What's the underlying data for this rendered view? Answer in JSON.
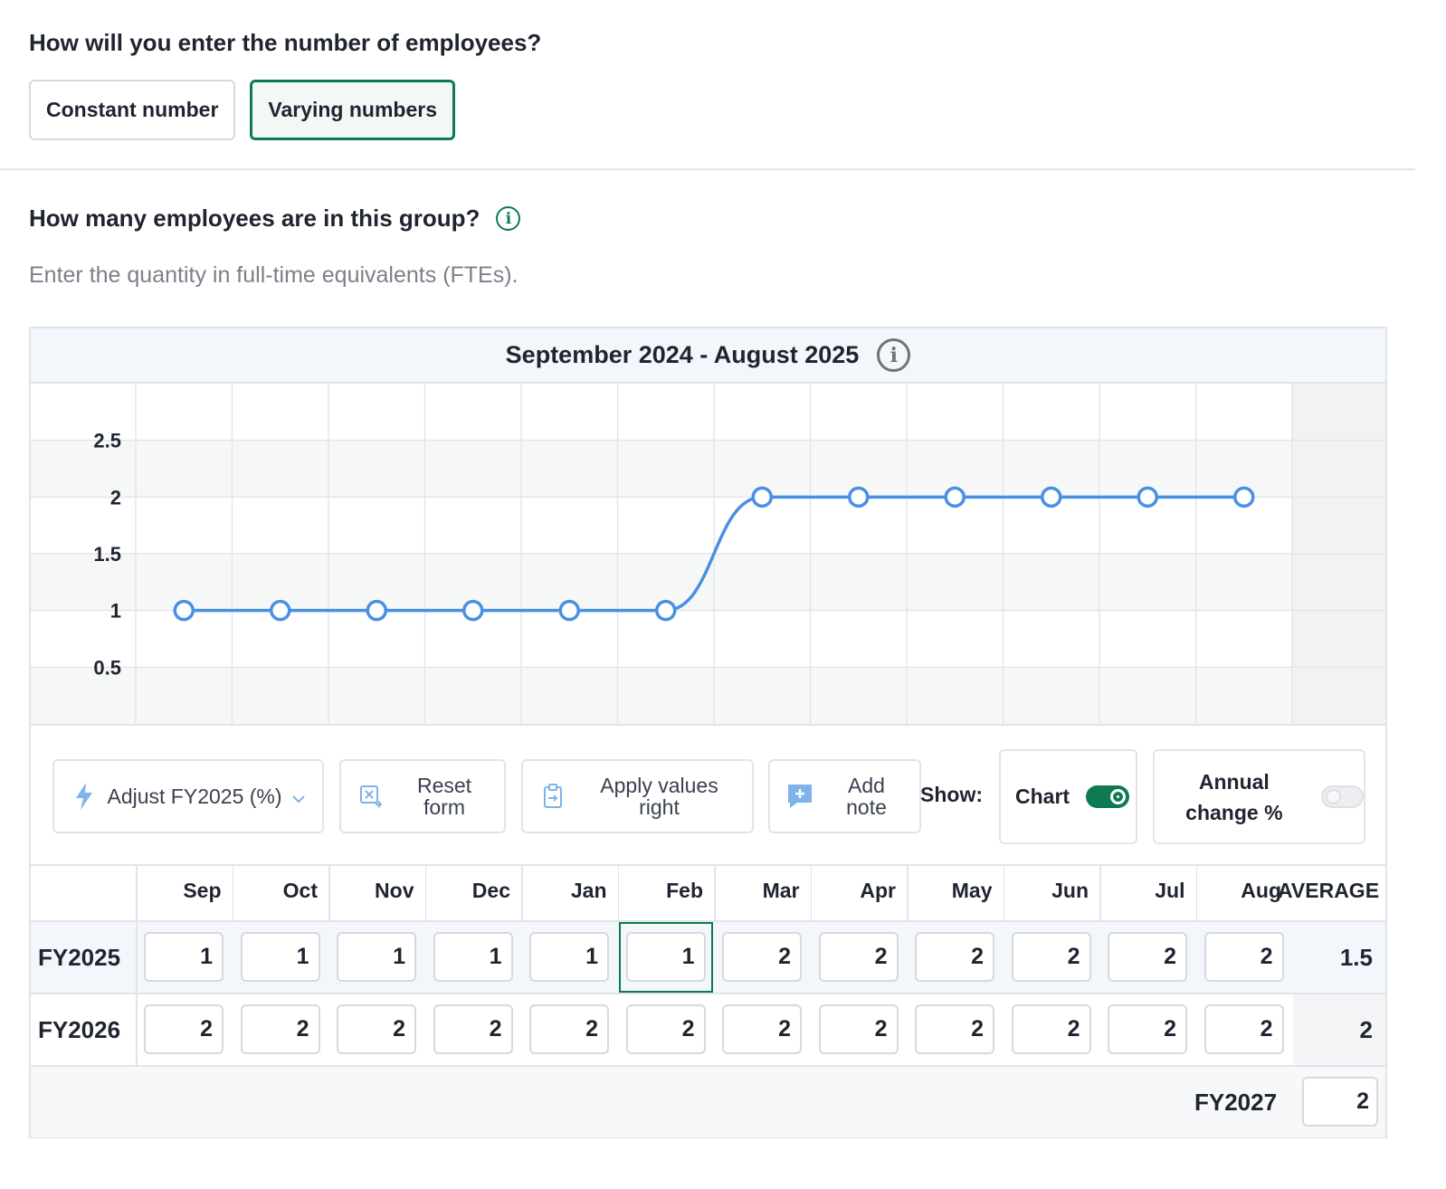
{
  "entry_question": "How will you enter the number of employees?",
  "entry_options": [
    {
      "label": "Constant number",
      "selected": false
    },
    {
      "label": "Varying numbers",
      "selected": true
    }
  ],
  "count_question": "How many employees are in this group?",
  "count_hint": "Enter the quantity in full-time equivalents (FTEs).",
  "icons": {
    "info": "info-icon",
    "adjust": "lightning-icon",
    "reset": "reset-icon",
    "apply": "clipboard-icon",
    "note": "add-note-icon",
    "dropdown": "chevron-down-icon"
  },
  "colors": {
    "accent": "#0e7a52",
    "line": "#4a90e2"
  },
  "chart_data": {
    "type": "line",
    "title": "September 2024 - August 2025",
    "categories": [
      "Sep",
      "Oct",
      "Nov",
      "Dec",
      "Jan",
      "Feb",
      "Mar",
      "Apr",
      "May",
      "Jun",
      "Jul",
      "Aug"
    ],
    "series": [
      {
        "values": [
          1,
          1,
          1,
          1,
          1,
          1,
          2,
          2,
          2,
          2,
          2,
          2
        ]
      }
    ],
    "yticks": [
      "2.5",
      "2",
      "1.5",
      "1",
      "0.5"
    ],
    "ylim": [
      0,
      3
    ],
    "grid": true
  },
  "toolbar": {
    "adjust_label": "Adjust FY2025 (%)",
    "reset_label": "Reset form",
    "apply_label": "Apply values right",
    "note_label": "Add note",
    "show_label": "Show:",
    "chart_toggle_label": "Chart",
    "chart_toggle_on": true,
    "annual_toggle_label": "Annual change %",
    "annual_toggle_on": false
  },
  "table": {
    "months": [
      "Sep",
      "Oct",
      "Nov",
      "Dec",
      "Jan",
      "Feb",
      "Mar",
      "Apr",
      "May",
      "Jun",
      "Jul",
      "Aug"
    ],
    "average_header": "AVERAGE",
    "rows": [
      {
        "year": "FY2025",
        "values": [
          "1",
          "1",
          "1",
          "1",
          "1",
          "1",
          "2",
          "2",
          "2",
          "2",
          "2",
          "2"
        ],
        "average": "1.5"
      },
      {
        "year": "FY2026",
        "values": [
          "2",
          "2",
          "2",
          "2",
          "2",
          "2",
          "2",
          "2",
          "2",
          "2",
          "2",
          "2"
        ],
        "average": "2"
      }
    ],
    "fy2027_label": "FY2027",
    "fy2027_value": "2"
  }
}
